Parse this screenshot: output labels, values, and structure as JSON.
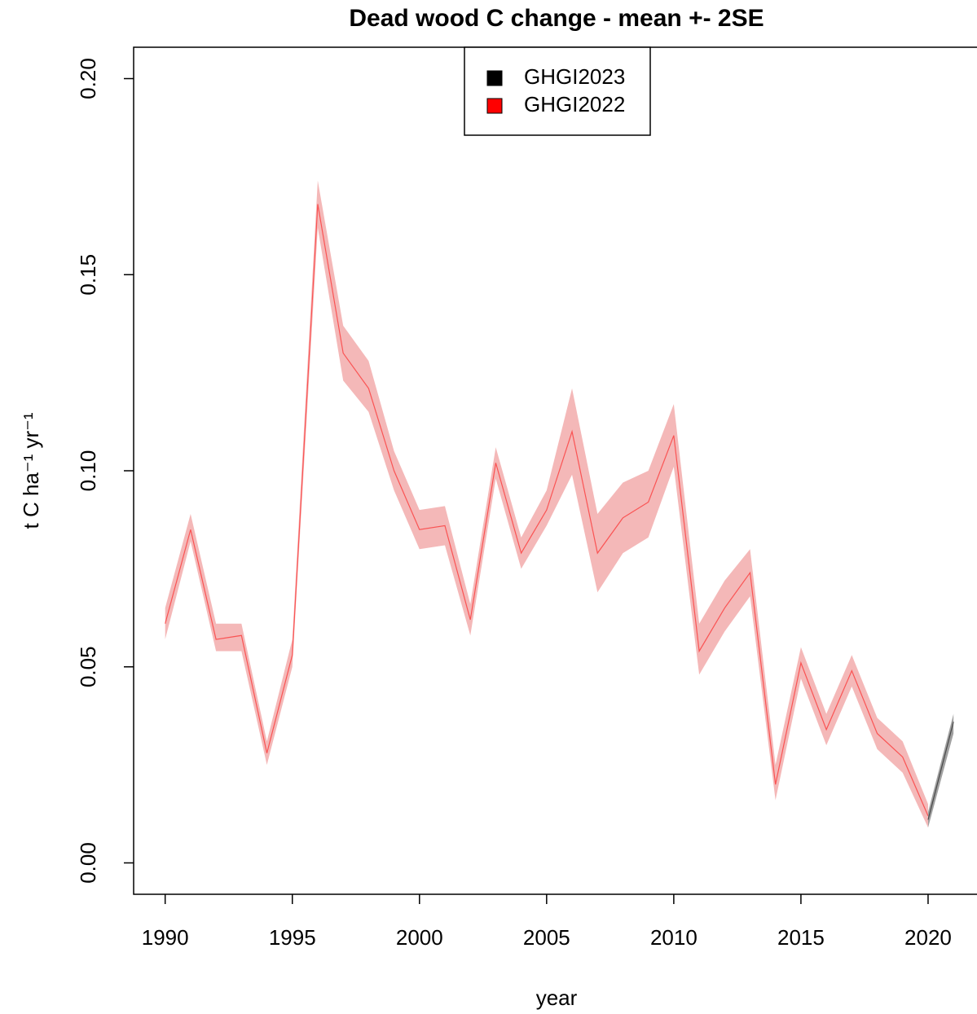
{
  "chart_data": {
    "type": "band-line",
    "title": "Dead wood C change - mean +- 2SE",
    "x_label": "year",
    "y_label": "t C ha⁻¹ yr⁻¹",
    "xlim": [
      1988.76,
      2022.1
    ],
    "ylim": [
      -0.008,
      0.208
    ],
    "xticks": [
      1990,
      1995,
      2000,
      2005,
      2010,
      2015,
      2020
    ],
    "yticks": [
      {
        "value": 0,
        "label": "0.00"
      },
      {
        "value": 0.05,
        "label": "0.05"
      },
      {
        "value": 0.1,
        "label": "0.10"
      },
      {
        "value": 0.15,
        "label": "0.15"
      },
      {
        "value": 0.2,
        "label": "0.20"
      }
    ],
    "legend": "top",
    "series": [
      {
        "name": "GHGI2023",
        "color": "black",
        "band_color": "gray",
        "x": [
          2020,
          2021
        ],
        "values": [
          0.011,
          0.036
        ],
        "lower": [
          0.009,
          0.033
        ],
        "upper": [
          0.013,
          0.038
        ]
      },
      {
        "name": "GHGI2022",
        "color": "red",
        "band_color": "#f0a0a0",
        "x": [
          1990,
          1991,
          1992,
          1993,
          1994,
          1995,
          1996,
          1997,
          1998,
          1999,
          2000,
          2001,
          2002,
          2003,
          2004,
          2005,
          2006,
          2007,
          2008,
          2009,
          2010,
          2011,
          2012,
          2013,
          2014,
          2015,
          2016,
          2017,
          2018,
          2019,
          2020
        ],
        "values": [
          0.061,
          0.085,
          0.057,
          0.058,
          0.028,
          0.053,
          0.168,
          0.13,
          0.121,
          0.1,
          0.085,
          0.086,
          0.062,
          0.102,
          0.079,
          0.09,
          0.11,
          0.079,
          0.088,
          0.092,
          0.109,
          0.054,
          0.065,
          0.074,
          0.02,
          0.051,
          0.034,
          0.049,
          0.033,
          0.027,
          0.012
        ],
        "lower": [
          0.057,
          0.082,
          0.054,
          0.054,
          0.025,
          0.05,
          0.162,
          0.123,
          0.115,
          0.095,
          0.08,
          0.081,
          0.058,
          0.098,
          0.075,
          0.086,
          0.099,
          0.069,
          0.079,
          0.083,
          0.101,
          0.048,
          0.059,
          0.068,
          0.016,
          0.047,
          0.03,
          0.045,
          0.029,
          0.023,
          0.009
        ],
        "upper": [
          0.065,
          0.089,
          0.061,
          0.061,
          0.031,
          0.057,
          0.174,
          0.137,
          0.128,
          0.105,
          0.09,
          0.091,
          0.066,
          0.106,
          0.083,
          0.095,
          0.121,
          0.089,
          0.097,
          0.1,
          0.117,
          0.061,
          0.072,
          0.08,
          0.025,
          0.055,
          0.038,
          0.053,
          0.037,
          0.031,
          0.015
        ]
      }
    ]
  }
}
